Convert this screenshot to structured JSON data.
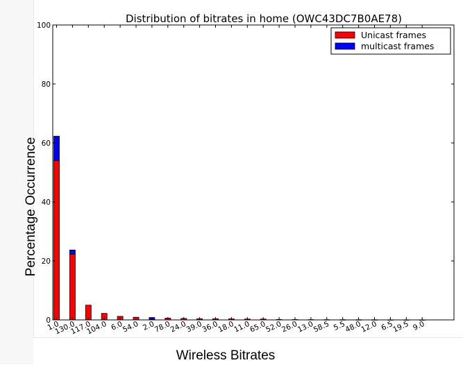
{
  "chart_data": {
    "type": "bar",
    "stacked": true,
    "title": "Distribution of bitrates in home (OWC43DC7B0AE78)",
    "xlabel": "Wireless Bitrates",
    "ylabel": "Percentage Occurrence",
    "ylim": [
      0,
      100
    ],
    "yticks": [
      0,
      20,
      40,
      60,
      80,
      100
    ],
    "categories": [
      "1.0",
      "130.0",
      "117.0",
      "104.0",
      "6.0",
      "54.0",
      "2.0",
      "78.0",
      "24.0",
      "39.0",
      "36.0",
      "18.0",
      "11.0",
      "65.0",
      "52.0",
      "26.0",
      "13.0",
      "58.5",
      "5.5",
      "48.0",
      "12.0",
      "6.5",
      "19.5",
      "9.0"
    ],
    "series": [
      {
        "name": "Unicast frames",
        "color": "#ff0000",
        "values": [
          54.0,
          22.3,
          5.0,
          2.2,
          1.2,
          0.9,
          0.2,
          0.6,
          0.5,
          0.4,
          0.4,
          0.35,
          0.3,
          0.3,
          0.15,
          0.12,
          0.1,
          0.08,
          0.07,
          0.06,
          0.05,
          0.04,
          0.03,
          0.02
        ]
      },
      {
        "name": "multicast frames",
        "color": "#0000ff",
        "values": [
          8.3,
          1.4,
          0.0,
          0.0,
          0.0,
          0.0,
          0.6,
          0.0,
          0.0,
          0.0,
          0.0,
          0.0,
          0.0,
          0.0,
          0.0,
          0.0,
          0.0,
          0.0,
          0.0,
          0.0,
          0.0,
          0.0,
          0.0,
          0.0
        ]
      }
    ],
    "legend": "top-right",
    "grid": false
  }
}
